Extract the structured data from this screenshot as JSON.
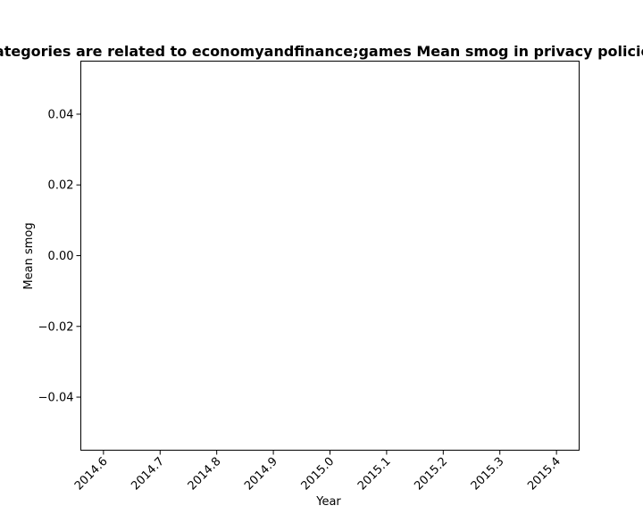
{
  "chart_data": {
    "type": "line",
    "title": "Categories are related to economyandfinance;games Mean smog in privacy policies",
    "xlabel": "Year",
    "ylabel": "Mean smog",
    "x_ticks": [
      "2014.6",
      "2014.7",
      "2014.8",
      "2014.9",
      "2015.0",
      "2015.1",
      "2015.2",
      "2015.3",
      "2015.4"
    ],
    "y_ticks": [
      "0.04",
      "0.02",
      "0.00",
      "−0.02",
      "−0.04"
    ],
    "x_tick_values": [
      2014.6,
      2014.7,
      2014.8,
      2014.9,
      2015.0,
      2015.1,
      2015.2,
      2015.3,
      2015.4
    ],
    "y_tick_values": [
      0.04,
      0.02,
      0.0,
      -0.02,
      -0.04
    ],
    "xlim": [
      2014.56,
      2015.44
    ],
    "ylim": [
      -0.055,
      0.055
    ],
    "series": [],
    "grid": false,
    "x_tick_rotation": "45 degrees"
  }
}
